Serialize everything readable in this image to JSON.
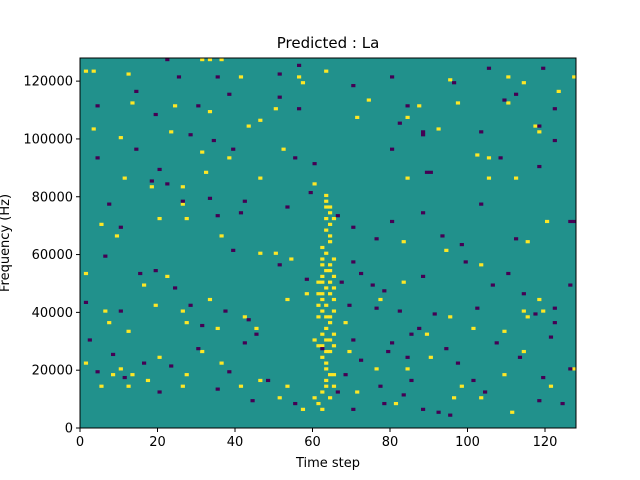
{
  "chart_data": {
    "type": "heatmap",
    "title": "Predicted : La",
    "xlabel": "Time step",
    "ylabel": "Frequency (Hz)",
    "xlim": [
      0,
      128
    ],
    "ylim": [
      0,
      128000
    ],
    "x_ticks": [
      0,
      20,
      40,
      60,
      80,
      100,
      120
    ],
    "x_tick_labels": [
      "0",
      "20",
      "40",
      "60",
      "80",
      "100",
      "120"
    ],
    "y_ticks": [
      0,
      20000,
      40000,
      60000,
      80000,
      100000,
      120000
    ],
    "y_tick_labels": [
      "0",
      "20000",
      "40000",
      "60000",
      "80000",
      "100000",
      "120000"
    ],
    "colormap": "viridis",
    "value_levels": [
      -1,
      0,
      1
    ],
    "level_colors": {
      "-1": "#440154",
      "0": "#21918c",
      "1": "#fde725"
    },
    "background_value": 0,
    "grid_rows": 128,
    "grid_cols": 128,
    "cells": [
      [
        63,
        80,
        1
      ],
      [
        63,
        78,
        1
      ],
      [
        63,
        76,
        1
      ],
      [
        64,
        74,
        1
      ],
      [
        63,
        72,
        1
      ],
      [
        64,
        70,
        1
      ],
      [
        63,
        68,
        1
      ],
      [
        64,
        66,
        1
      ],
      [
        64,
        64,
        1
      ],
      [
        62,
        62,
        1
      ],
      [
        63,
        60,
        1
      ],
      [
        62,
        58,
        1
      ],
      [
        62,
        56,
        1
      ],
      [
        63,
        54,
        1
      ],
      [
        62,
        52,
        1
      ],
      [
        62,
        50,
        1
      ],
      [
        63,
        48,
        1
      ],
      [
        62,
        46,
        1
      ],
      [
        62,
        44,
        1
      ],
      [
        63,
        42,
        1
      ],
      [
        62,
        40,
        1
      ],
      [
        63,
        38,
        1
      ],
      [
        64,
        36,
        1
      ],
      [
        63,
        34,
        1
      ],
      [
        62,
        32,
        1
      ],
      [
        63,
        30,
        1
      ],
      [
        62,
        28,
        1
      ],
      [
        63,
        26,
        1
      ],
      [
        62,
        24,
        1
      ],
      [
        63,
        22,
        1
      ],
      [
        63,
        20,
        1
      ],
      [
        64,
        18,
        1
      ],
      [
        63,
        16,
        1
      ],
      [
        63,
        14,
        1
      ],
      [
        62,
        12,
        1
      ],
      [
        64,
        10,
        1
      ],
      [
        61,
        8,
        1
      ],
      [
        62,
        6,
        1
      ],
      [
        64,
        76,
        1
      ],
      [
        65,
        72,
        1
      ],
      [
        65,
        58,
        1
      ],
      [
        64,
        56,
        1
      ],
      [
        64,
        54,
        1
      ],
      [
        65,
        52,
        1
      ],
      [
        64,
        50,
        1
      ],
      [
        65,
        48,
        1
      ],
      [
        64,
        46,
        1
      ],
      [
        65,
        44,
        1
      ],
      [
        65,
        40,
        1
      ],
      [
        64,
        38,
        1
      ],
      [
        65,
        32,
        1
      ],
      [
        64,
        30,
        1
      ],
      [
        65,
        28,
        1
      ],
      [
        64,
        26,
        1
      ],
      [
        61,
        50,
        1
      ],
      [
        61,
        46,
        1
      ],
      [
        61,
        42,
        1
      ],
      [
        61,
        38,
        1
      ],
      [
        60,
        30,
        1
      ],
      [
        61,
        28,
        1
      ],
      [
        60,
        10,
        1
      ],
      [
        65,
        14,
        1
      ],
      [
        65,
        18,
        1
      ],
      [
        1,
        123,
        1
      ],
      [
        3,
        123,
        1
      ],
      [
        12,
        122,
        1
      ],
      [
        31,
        127,
        1
      ],
      [
        33,
        127,
        1
      ],
      [
        36,
        127,
        1
      ],
      [
        41,
        121,
        1
      ],
      [
        56,
        121,
        1
      ],
      [
        57,
        119,
        1
      ],
      [
        63,
        123,
        1
      ],
      [
        74,
        113,
        1
      ],
      [
        95,
        120,
        1
      ],
      [
        110,
        121,
        1
      ],
      [
        114,
        119,
        1
      ],
      [
        127,
        121,
        1
      ],
      [
        13,
        112,
        1
      ],
      [
        24,
        111,
        1
      ],
      [
        33,
        109,
        1
      ],
      [
        50,
        110,
        1
      ],
      [
        71,
        107,
        1
      ],
      [
        84,
        107,
        1
      ],
      [
        97,
        112,
        1
      ],
      [
        110,
        112,
        1
      ],
      [
        123,
        116,
        1
      ],
      [
        3,
        103,
        1
      ],
      [
        10,
        100,
        1
      ],
      [
        23,
        102,
        1
      ],
      [
        31,
        95,
        1
      ],
      [
        38,
        93,
        1
      ],
      [
        43,
        104,
        1
      ],
      [
        46,
        106,
        1
      ],
      [
        52,
        96,
        1
      ],
      [
        87,
        111,
        1
      ],
      [
        92,
        103,
        1
      ],
      [
        102,
        94,
        1
      ],
      [
        105,
        93,
        1
      ],
      [
        117,
        104,
        1
      ],
      [
        118,
        102,
        1
      ],
      [
        11,
        86,
        1
      ],
      [
        18,
        83,
        1
      ],
      [
        26,
        83,
        1
      ],
      [
        32,
        88,
        1
      ],
      [
        46,
        86,
        1
      ],
      [
        60,
        84,
        1
      ],
      [
        84,
        86,
        1
      ],
      [
        105,
        86,
        1
      ],
      [
        112,
        86,
        1
      ],
      [
        5,
        70,
        1
      ],
      [
        9,
        66,
        1
      ],
      [
        20,
        72,
        1
      ],
      [
        26,
        77,
        1
      ],
      [
        27,
        72,
        1
      ],
      [
        36,
        66,
        1
      ],
      [
        46,
        60,
        1
      ],
      [
        50,
        60,
        1
      ],
      [
        54,
        58,
        1
      ],
      [
        83,
        64,
        1
      ],
      [
        94,
        61,
        1
      ],
      [
        103,
        56,
        1
      ],
      [
        115,
        64,
        1
      ],
      [
        120,
        71,
        1
      ],
      [
        1,
        53,
        1
      ],
      [
        6,
        40,
        1
      ],
      [
        7,
        36,
        1
      ],
      [
        12,
        33,
        1
      ],
      [
        16,
        49,
        1
      ],
      [
        19,
        42,
        1
      ],
      [
        22,
        52,
        1
      ],
      [
        26,
        40,
        1
      ],
      [
        27,
        36,
        1
      ],
      [
        33,
        44,
        1
      ],
      [
        35,
        34,
        1
      ],
      [
        42,
        38,
        1
      ],
      [
        45,
        34,
        1
      ],
      [
        53,
        44,
        1
      ],
      [
        58,
        46,
        1
      ],
      [
        68,
        36,
        1
      ],
      [
        77,
        44,
        1
      ],
      [
        83,
        50,
        1
      ],
      [
        89,
        32,
        1
      ],
      [
        95,
        38,
        1
      ],
      [
        101,
        34,
        1
      ],
      [
        109,
        33,
        1
      ],
      [
        114,
        40,
        1
      ],
      [
        115,
        38,
        1
      ],
      [
        118,
        44,
        1
      ],
      [
        119,
        40,
        1
      ],
      [
        1,
        22,
        1
      ],
      [
        5,
        14,
        1
      ],
      [
        8,
        18,
        1
      ],
      [
        10,
        20,
        1
      ],
      [
        12,
        14,
        1
      ],
      [
        13,
        18,
        1
      ],
      [
        17,
        16,
        1
      ],
      [
        20,
        24,
        1
      ],
      [
        26,
        14,
        1
      ],
      [
        27,
        18,
        1
      ],
      [
        31,
        26,
        1
      ],
      [
        36,
        22,
        1
      ],
      [
        41,
        14,
        1
      ],
      [
        46,
        16,
        1
      ],
      [
        51,
        10,
        1
      ],
      [
        57,
        6,
        1
      ],
      [
        69,
        26,
        1
      ],
      [
        71,
        12,
        1
      ],
      [
        76,
        20,
        1
      ],
      [
        81,
        8,
        1
      ],
      [
        84,
        20,
        1
      ],
      [
        90,
        24,
        1
      ],
      [
        98,
        14,
        1
      ],
      [
        103,
        10,
        1
      ],
      [
        109,
        18,
        1
      ],
      [
        114,
        26,
        1
      ],
      [
        121,
        14,
        1
      ],
      [
        127,
        20,
        1
      ],
      [
        111,
        5,
        1
      ],
      [
        96,
        10,
        1
      ],
      [
        53,
        14,
        1
      ],
      [
        22,
        127,
        -1
      ],
      [
        25,
        121,
        -1
      ],
      [
        35,
        121,
        -1
      ],
      [
        51,
        122,
        -1
      ],
      [
        56,
        125,
        -1
      ],
      [
        70,
        118,
        -1
      ],
      [
        80,
        121,
        -1
      ],
      [
        96,
        119,
        -1
      ],
      [
        105,
        124,
        -1
      ],
      [
        112,
        115,
        -1
      ],
      [
        119,
        124,
        -1
      ],
      [
        4,
        111,
        -1
      ],
      [
        14,
        116,
        -1
      ],
      [
        19,
        108,
        -1
      ],
      [
        30,
        111,
        -1
      ],
      [
        38,
        115,
        -1
      ],
      [
        51,
        114,
        -1
      ],
      [
        56,
        110,
        -1
      ],
      [
        82,
        105,
        -1
      ],
      [
        84,
        111,
        -1
      ],
      [
        88,
        102,
        -1
      ],
      [
        103,
        102,
        -1
      ],
      [
        109,
        113,
        -1
      ],
      [
        118,
        104,
        -1
      ],
      [
        122,
        110,
        -1
      ],
      [
        4,
        93,
        -1
      ],
      [
        14,
        96,
        -1
      ],
      [
        20,
        89,
        -1
      ],
      [
        28,
        101,
        -1
      ],
      [
        34,
        99,
        -1
      ],
      [
        39,
        96,
        -1
      ],
      [
        55,
        93,
        -1
      ],
      [
        60,
        91,
        -1
      ],
      [
        80,
        96,
        -1
      ],
      [
        88,
        101,
        -1
      ],
      [
        89,
        88,
        -1
      ],
      [
        90,
        88,
        -1
      ],
      [
        108,
        93,
        -1
      ],
      [
        118,
        90,
        -1
      ],
      [
        122,
        99,
        -1
      ],
      [
        7,
        77,
        -1
      ],
      [
        10,
        69,
        -1
      ],
      [
        18,
        85,
        -1
      ],
      [
        22,
        84,
        -1
      ],
      [
        26,
        78,
        -1
      ],
      [
        33,
        79,
        -1
      ],
      [
        35,
        73,
        -1
      ],
      [
        41,
        74,
        -1
      ],
      [
        42,
        78,
        -1
      ],
      [
        53,
        76,
        -1
      ],
      [
        59,
        81,
        -1
      ],
      [
        66,
        73,
        -1
      ],
      [
        70,
        69,
        -1
      ],
      [
        76,
        65,
        -1
      ],
      [
        80,
        71,
        -1
      ],
      [
        88,
        74,
        -1
      ],
      [
        93,
        66,
        -1
      ],
      [
        98,
        63,
        -1
      ],
      [
        103,
        77,
        -1
      ],
      [
        112,
        65,
        -1
      ],
      [
        126,
        71,
        -1
      ],
      [
        127,
        71,
        -1
      ],
      [
        1,
        43,
        -1
      ],
      [
        6,
        59,
        -1
      ],
      [
        10,
        40,
        -1
      ],
      [
        15,
        53,
        -1
      ],
      [
        19,
        54,
        -1
      ],
      [
        24,
        48,
        -1
      ],
      [
        28,
        42,
        -1
      ],
      [
        31,
        35,
        -1
      ],
      [
        37,
        40,
        -1
      ],
      [
        39,
        61,
        -1
      ],
      [
        43,
        37,
        -1
      ],
      [
        51,
        56,
        -1
      ],
      [
        58,
        51,
        -1
      ],
      [
        67,
        50,
        -1
      ],
      [
        69,
        42,
        -1
      ],
      [
        70,
        57,
        -1
      ],
      [
        72,
        53,
        -1
      ],
      [
        75,
        49,
        -1
      ],
      [
        76,
        41,
        -1
      ],
      [
        78,
        47,
        -1
      ],
      [
        82,
        40,
        -1
      ],
      [
        85,
        32,
        -1
      ],
      [
        88,
        52,
        -1
      ],
      [
        91,
        39,
        -1
      ],
      [
        99,
        57,
        -1
      ],
      [
        102,
        41,
        -1
      ],
      [
        106,
        49,
        -1
      ],
      [
        110,
        53,
        -1
      ],
      [
        114,
        46,
        -1
      ],
      [
        117,
        39,
        -1
      ],
      [
        122,
        41,
        -1
      ],
      [
        122,
        36,
        -1
      ],
      [
        126,
        49,
        -1
      ],
      [
        2,
        30,
        -1
      ],
      [
        4,
        19,
        -1
      ],
      [
        8,
        25,
        -1
      ],
      [
        11,
        17,
        -1
      ],
      [
        16,
        22,
        -1
      ],
      [
        20,
        12,
        -1
      ],
      [
        23,
        21,
        -1
      ],
      [
        30,
        27,
        -1
      ],
      [
        35,
        13,
        -1
      ],
      [
        38,
        19,
        -1
      ],
      [
        44,
        9,
        -1
      ],
      [
        48,
        16,
        -1
      ],
      [
        55,
        8,
        -1
      ],
      [
        62,
        27,
        -1
      ],
      [
        66,
        12,
        -1
      ],
      [
        68,
        18,
        -1
      ],
      [
        70,
        30,
        -1
      ],
      [
        72,
        23,
        -1
      ],
      [
        77,
        14,
        -1
      ],
      [
        79,
        26,
        -1
      ],
      [
        83,
        11,
        -1
      ],
      [
        85,
        16,
        -1
      ],
      [
        87,
        34,
        -1
      ],
      [
        92,
        5,
        -1
      ],
      [
        94,
        27,
        -1
      ],
      [
        97,
        22,
        -1
      ],
      [
        101,
        16,
        -1
      ],
      [
        104,
        12,
        -1
      ],
      [
        107,
        29,
        -1
      ],
      [
        113,
        24,
        -1
      ],
      [
        119,
        17,
        -1
      ],
      [
        121,
        31,
        -1
      ],
      [
        124,
        8,
        -1
      ],
      [
        126,
        20,
        -1
      ],
      [
        70,
        6,
        -1
      ],
      [
        78,
        8,
        -1
      ],
      [
        88,
        6,
        -1
      ],
      [
        95,
        4,
        -1
      ],
      [
        118,
        9,
        -1
      ],
      [
        42,
        29,
        -1
      ],
      [
        45,
        32,
        -1
      ],
      [
        80,
        29,
        -1
      ],
      [
        84,
        24,
        -1
      ]
    ]
  }
}
